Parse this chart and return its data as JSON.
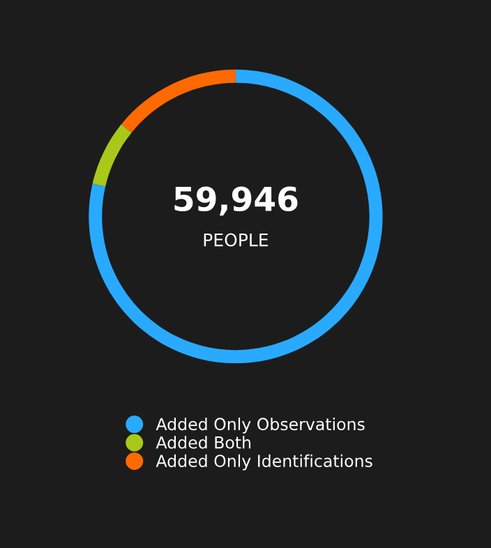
{
  "chart_data": {
    "type": "donut",
    "categories": [
      "Added Only Observations",
      "Added Both",
      "Added Only Identifications"
    ],
    "values": [
      78.6,
      7.2,
      14.2
    ],
    "colors": [
      "#29aaff",
      "#a8c81a",
      "#ff6a00"
    ],
    "annotations": [
      "59,946",
      "PEOPLE"
    ],
    "legend": "bottom"
  }
}
